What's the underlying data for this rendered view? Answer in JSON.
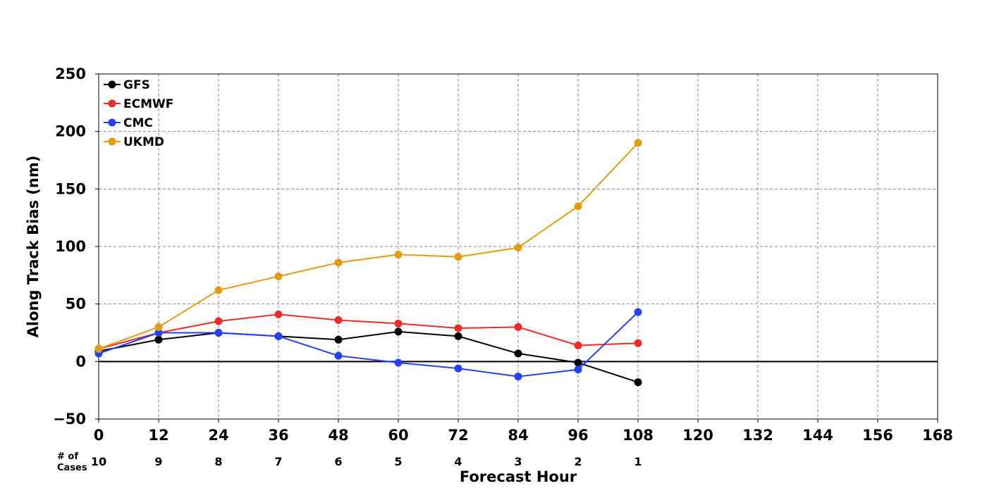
{
  "chart_data": {
    "type": "line",
    "xlabel": "Forecast Hour",
    "ylabel": "Along Track Bias (nm)",
    "xlim": [
      0,
      168
    ],
    "ylim": [
      -50,
      250
    ],
    "x_ticks": [
      0,
      12,
      24,
      36,
      48,
      60,
      72,
      84,
      96,
      108,
      120,
      132,
      144,
      156,
      168
    ],
    "y_ticks": [
      -50,
      0,
      50,
      100,
      150,
      200,
      250
    ],
    "grid": true,
    "legend_position": "top-left",
    "cases_label": [
      "# of",
      "Cases"
    ],
    "cases_x": [
      0,
      12,
      24,
      36,
      48,
      60,
      72,
      84,
      96,
      108
    ],
    "cases": [
      10,
      9,
      8,
      7,
      6,
      5,
      4,
      3,
      2,
      1
    ],
    "x": [
      0,
      12,
      24,
      36,
      48,
      60,
      72,
      84,
      96,
      108
    ],
    "series": [
      {
        "name": "GFS",
        "color": "#000000",
        "values": [
          9,
          19,
          25,
          22,
          19,
          26,
          22,
          7,
          -1,
          -18
        ]
      },
      {
        "name": "ECMWF",
        "color": "#ef2a2a",
        "values": [
          11,
          25,
          35,
          41,
          36,
          33,
          29,
          30,
          14,
          16
        ]
      },
      {
        "name": "CMC",
        "color": "#2541f5",
        "values": [
          7,
          25,
          25,
          22,
          5,
          -1,
          -6,
          -13,
          -7,
          43
        ]
      },
      {
        "name": "UKMD",
        "color": "#e29c11",
        "values": [
          11,
          30,
          62,
          74,
          86,
          93,
          91,
          99,
          135,
          190
        ]
      }
    ]
  }
}
